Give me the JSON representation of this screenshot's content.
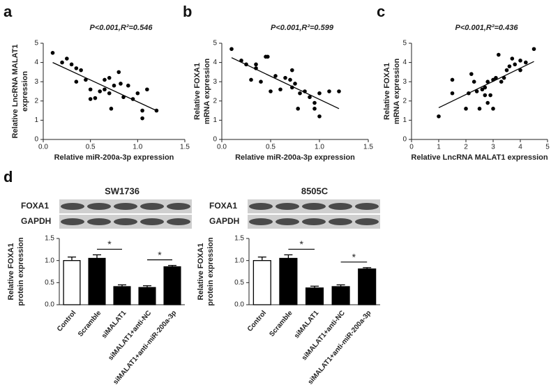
{
  "chart_data": [
    {
      "type": "scatter",
      "label": "a",
      "title": "P<0.001,R²=0.546",
      "xlabel": "Relative miR-200a-3p expression",
      "ylabel": [
        "Relative LncRNA MALAT1",
        "expression"
      ],
      "x": [
        0.1,
        0.2,
        0.25,
        0.3,
        0.35,
        0.35,
        0.4,
        0.45,
        0.5,
        0.5,
        0.55,
        0.6,
        0.65,
        0.65,
        0.7,
        0.7,
        0.72,
        0.75,
        0.8,
        0.82,
        0.85,
        0.9,
        0.95,
        1.0,
        1.05,
        1.05,
        1.1,
        1.2
      ],
      "values": [
        4.5,
        4.0,
        4.2,
        3.9,
        3.7,
        3.0,
        3.6,
        3.1,
        2.6,
        2.1,
        2.15,
        2.5,
        3.1,
        2.6,
        2.4,
        3.2,
        1.6,
        2.8,
        3.5,
        2.9,
        2.2,
        2.8,
        2.1,
        2.4,
        1.5,
        1.1,
        2.6,
        1.5
      ],
      "fit": {
        "x": [
          0.1,
          1.2
        ],
        "y": [
          4.0,
          1.5
        ]
      },
      "xlim": [
        0,
        1.5
      ],
      "xticks": [
        {
          "value": 0,
          "label": "0.0"
        },
        {
          "value": 0.5,
          "label": "0.5"
        },
        {
          "value": 1,
          "label": "1.0"
        },
        {
          "value": 1.5,
          "label": "1.5"
        }
      ],
      "ylim": [
        0,
        5
      ],
      "yticks": [
        0,
        1,
        2,
        3,
        4,
        5
      ],
      "color": "#000000"
    },
    {
      "type": "scatter",
      "label": "b",
      "title": "P<0.001,R²=0.599",
      "xlabel": "Relative miR-200a-3p expression",
      "ylabel": [
        "Relative FOXA1",
        "mRNA expression"
      ],
      "x": [
        0.1,
        0.2,
        0.25,
        0.3,
        0.35,
        0.35,
        0.4,
        0.45,
        0.47,
        0.5,
        0.55,
        0.6,
        0.65,
        0.7,
        0.72,
        0.72,
        0.75,
        0.78,
        0.8,
        0.85,
        0.9,
        0.95,
        0.95,
        1.0,
        1.0,
        1.1,
        1.2
      ],
      "values": [
        4.7,
        4.1,
        3.9,
        3.1,
        3.9,
        3.7,
        3.0,
        4.3,
        4.3,
        2.5,
        3.3,
        2.6,
        3.2,
        3.1,
        3.6,
        2.7,
        2.9,
        1.6,
        2.4,
        2.5,
        2.2,
        1.6,
        1.9,
        2.4,
        1.2,
        2.5,
        2.5
      ],
      "fit": {
        "x": [
          0.1,
          1.2
        ],
        "y": [
          4.25,
          1.6
        ]
      },
      "xlim": [
        0,
        1.5
      ],
      "xticks": [
        {
          "value": 0,
          "label": "0.0"
        },
        {
          "value": 0.5,
          "label": "0.5"
        },
        {
          "value": 1,
          "label": "1.0"
        },
        {
          "value": 1.5,
          "label": "1.5"
        }
      ],
      "ylim": [
        0,
        5
      ],
      "yticks": [
        0,
        1,
        2,
        3,
        4,
        5
      ],
      "color": "#000000"
    },
    {
      "type": "scatter",
      "label": "c",
      "title": "P<0.001,R²=0.436",
      "xlabel": "Relative LncRNA MALAT1 expression",
      "ylabel": [
        "Relative FOXA1",
        "mRNA expression"
      ],
      "x": [
        1.0,
        1.5,
        1.5,
        2.0,
        2.1,
        2.2,
        2.3,
        2.4,
        2.5,
        2.6,
        2.7,
        2.7,
        2.8,
        2.8,
        2.9,
        3.0,
        3.0,
        3.1,
        3.2,
        3.3,
        3.4,
        3.5,
        3.6,
        3.7,
        3.8,
        4.0,
        4.0,
        4.2,
        4.5
      ],
      "values": [
        1.2,
        2.4,
        3.1,
        1.6,
        2.4,
        3.4,
        3.0,
        2.5,
        1.6,
        2.6,
        2.3,
        2.7,
        1.9,
        3.0,
        2.3,
        1.6,
        3.1,
        3.2,
        4.4,
        3.0,
        3.2,
        3.6,
        3.8,
        4.2,
        3.9,
        3.6,
        4.1,
        4.0,
        4.7
      ],
      "fit": {
        "x": [
          1.0,
          4.5
        ],
        "y": [
          1.65,
          4.05
        ]
      },
      "xlim": [
        0,
        5
      ],
      "xticks": [
        0,
        1,
        2,
        3,
        4,
        5
      ],
      "ylim": [
        0,
        5
      ],
      "yticks": [
        0,
        1,
        2,
        3,
        4,
        5
      ],
      "color": "#000000"
    },
    {
      "type": "bar",
      "label": "d",
      "title": "SW1736",
      "blot_labels": [
        "FOXA1",
        "GAPDH"
      ],
      "ylabel": [
        "Relative FOXA1",
        "protein expression"
      ],
      "categories": [
        "Control",
        "Scramble",
        "siMALAT1",
        "siMALAT1+anti-NC",
        "siMALAT1+anti-miR-200a-3p"
      ],
      "values": [
        1.0,
        1.05,
        0.41,
        0.39,
        0.86
      ],
      "errors": [
        0.08,
        0.08,
        0.04,
        0.04,
        0.03
      ],
      "colors": [
        "#ffffff",
        "#000000",
        "#000000",
        "#000000",
        "#000000"
      ],
      "annotations": [
        {
          "text": "*",
          "between": [
            1,
            2
          ]
        },
        {
          "text": "*",
          "between": [
            3,
            4
          ]
        }
      ],
      "ylim": [
        0,
        1.5
      ],
      "yticks": [
        {
          "value": 0,
          "label": "0.0"
        },
        {
          "value": 0.5,
          "label": "0.5"
        },
        {
          "value": 1,
          "label": "1.0"
        },
        {
          "value": 1.5,
          "label": "1.5"
        }
      ]
    },
    {
      "type": "bar",
      "title": "8505C",
      "blot_labels": [
        "FOXA1",
        "GAPDH"
      ],
      "ylabel": [
        "Relative FOXA1",
        "protein expression"
      ],
      "categories": [
        "Control",
        "Scramble",
        "siMALAT1",
        "siMALAT1+anti-NC",
        "siMALAT1+anti-miR-200a-3p"
      ],
      "values": [
        1.0,
        1.05,
        0.38,
        0.41,
        0.81
      ],
      "errors": [
        0.08,
        0.08,
        0.04,
        0.04,
        0.03
      ],
      "colors": [
        "#ffffff",
        "#000000",
        "#000000",
        "#000000",
        "#000000"
      ],
      "annotations": [
        {
          "text": "*",
          "between": [
            1,
            2
          ]
        },
        {
          "text": "*",
          "between": [
            3,
            4
          ]
        }
      ],
      "ylim": [
        0,
        1.5
      ],
      "yticks": [
        {
          "value": 0,
          "label": "0.0"
        },
        {
          "value": 0.5,
          "label": "0.5"
        },
        {
          "value": 1,
          "label": "1.0"
        },
        {
          "value": 1.5,
          "label": "1.5"
        }
      ]
    }
  ]
}
